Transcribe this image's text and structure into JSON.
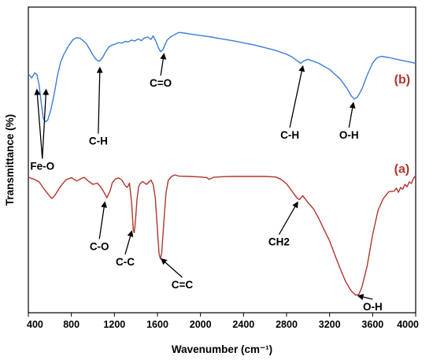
{
  "chart_data": {
    "type": "line",
    "title": "",
    "xlabel": "Wavenumber (cm⁻¹)",
    "ylabel": "Transmittance (%)",
    "xlim": [
      400,
      4000
    ],
    "x_ticks": [
      "400",
      "800",
      "1200",
      "1600",
      "2000",
      "2400",
      "2800",
      "3200",
      "3600",
      "4000"
    ],
    "y_ticks": [],
    "grid": false,
    "legend": "none",
    "y_note": "Transmittance in arbitrary units (0 = bottom of plot, 100 = top of plot)",
    "series": [
      {
        "name": "(b)",
        "color": "#3b7dd8",
        "points": [
          [
            400,
            78.2
          ],
          [
            430,
            76.8
          ],
          [
            460,
            78.5
          ],
          [
            480,
            78.0
          ],
          [
            500,
            74.5
          ],
          [
            520,
            68.5
          ],
          [
            540,
            63.5
          ],
          [
            560,
            62.5
          ],
          [
            580,
            63.0
          ],
          [
            610,
            66.5
          ],
          [
            640,
            71.5
          ],
          [
            670,
            77.5
          ],
          [
            700,
            82.0
          ],
          [
            730,
            84.5
          ],
          [
            760,
            86.5
          ],
          [
            790,
            88.2
          ],
          [
            820,
            89.5
          ],
          [
            850,
            90.0
          ],
          [
            880,
            89.8
          ],
          [
            910,
            89.0
          ],
          [
            940,
            88.0
          ],
          [
            970,
            86.2
          ],
          [
            1000,
            84.3
          ],
          [
            1030,
            82.8
          ],
          [
            1060,
            82.3
          ],
          [
            1090,
            83.5
          ],
          [
            1120,
            85.5
          ],
          [
            1150,
            87.0
          ],
          [
            1180,
            87.6
          ],
          [
            1210,
            87.9
          ],
          [
            1240,
            88.4
          ],
          [
            1270,
            88.2
          ],
          [
            1300,
            88.8
          ],
          [
            1330,
            88.6
          ],
          [
            1360,
            89.2
          ],
          [
            1390,
            88.9
          ],
          [
            1420,
            89.6
          ],
          [
            1450,
            89.0
          ],
          [
            1480,
            89.9
          ],
          [
            1510,
            90.2
          ],
          [
            1540,
            89.4
          ],
          [
            1560,
            90.6
          ],
          [
            1590,
            88.5
          ],
          [
            1610,
            86.6
          ],
          [
            1630,
            85.4
          ],
          [
            1650,
            86.0
          ],
          [
            1670,
            87.7
          ],
          [
            1690,
            89.2
          ],
          [
            1720,
            90.2
          ],
          [
            1750,
            90.8
          ],
          [
            1780,
            91.4
          ],
          [
            1800,
            91.7
          ],
          [
            1850,
            91.5
          ],
          [
            1900,
            91.2
          ],
          [
            2000,
            90.7
          ],
          [
            2100,
            90.2
          ],
          [
            2200,
            89.6
          ],
          [
            2300,
            89.0
          ],
          [
            2400,
            88.3
          ],
          [
            2500,
            87.6
          ],
          [
            2600,
            86.7
          ],
          [
            2700,
            85.8
          ],
          [
            2800,
            84.6
          ],
          [
            2850,
            83.7
          ],
          [
            2900,
            82.4
          ],
          [
            2930,
            81.6
          ],
          [
            2960,
            82.4
          ],
          [
            3000,
            82.9
          ],
          [
            3100,
            81.6
          ],
          [
            3200,
            79.6
          ],
          [
            3300,
            76.4
          ],
          [
            3360,
            73.5
          ],
          [
            3400,
            71.0
          ],
          [
            3430,
            69.9
          ],
          [
            3460,
            70.6
          ],
          [
            3500,
            73.2
          ],
          [
            3550,
            77.8
          ],
          [
            3600,
            81.7
          ],
          [
            3640,
            83.4
          ],
          [
            3680,
            83.9
          ],
          [
            3750,
            83.5
          ],
          [
            3850,
            82.7
          ],
          [
            3950,
            82.0
          ],
          [
            4000,
            81.6
          ]
        ]
      },
      {
        "name": "(a)",
        "color": "#b1352c",
        "points": [
          [
            400,
            44.3
          ],
          [
            450,
            43.7
          ],
          [
            500,
            42.8
          ],
          [
            550,
            40.3
          ],
          [
            600,
            38.1
          ],
          [
            620,
            37.4
          ],
          [
            650,
            38.6
          ],
          [
            700,
            41.4
          ],
          [
            750,
            43.5
          ],
          [
            800,
            44.2
          ],
          [
            850,
            43.1
          ],
          [
            880,
            43.7
          ],
          [
            920,
            44.3
          ],
          [
            960,
            43.0
          ],
          [
            1000,
            42.0
          ],
          [
            1040,
            42.4
          ],
          [
            1070,
            41.3
          ],
          [
            1100,
            39.6
          ],
          [
            1130,
            37.6
          ],
          [
            1160,
            39.9
          ],
          [
            1180,
            42.5
          ],
          [
            1210,
            43.8
          ],
          [
            1240,
            44.1
          ],
          [
            1270,
            43.4
          ],
          [
            1300,
            41.6
          ],
          [
            1320,
            41.0
          ],
          [
            1340,
            42.4
          ],
          [
            1360,
            36.0
          ],
          [
            1375,
            27.0
          ],
          [
            1385,
            26.2
          ],
          [
            1395,
            30.0
          ],
          [
            1410,
            37.0
          ],
          [
            1425,
            41.2
          ],
          [
            1440,
            42.3
          ],
          [
            1460,
            42.9
          ],
          [
            1480,
            42.5
          ],
          [
            1500,
            42.0
          ],
          [
            1520,
            42.8
          ],
          [
            1540,
            43.4
          ],
          [
            1560,
            42.0
          ],
          [
            1580,
            37.5
          ],
          [
            1600,
            27.0
          ],
          [
            1615,
            19.2
          ],
          [
            1628,
            17.6
          ],
          [
            1640,
            19.8
          ],
          [
            1660,
            30.0
          ],
          [
            1680,
            39.2
          ],
          [
            1700,
            43.3
          ],
          [
            1730,
            44.6
          ],
          [
            1760,
            45.1
          ],
          [
            1800,
            44.7
          ],
          [
            1900,
            44.6
          ],
          [
            2000,
            44.4
          ],
          [
            2060,
            44.2
          ],
          [
            2080,
            43.6
          ],
          [
            2120,
            44.3
          ],
          [
            2200,
            44.5
          ],
          [
            2300,
            44.6
          ],
          [
            2400,
            44.6
          ],
          [
            2500,
            44.6
          ],
          [
            2600,
            44.6
          ],
          [
            2700,
            44.4
          ],
          [
            2750,
            43.6
          ],
          [
            2800,
            42.2
          ],
          [
            2850,
            39.8
          ],
          [
            2900,
            37.4
          ],
          [
            2920,
            37.0
          ],
          [
            2950,
            38.3
          ],
          [
            3000,
            36.0
          ],
          [
            3050,
            34.0
          ],
          [
            3100,
            30.8
          ],
          [
            3150,
            27.1
          ],
          [
            3200,
            23.5
          ],
          [
            3250,
            18.8
          ],
          [
            3300,
            14.3
          ],
          [
            3350,
            10.1
          ],
          [
            3400,
            7.2
          ],
          [
            3440,
            5.8
          ],
          [
            3470,
            5.9
          ],
          [
            3500,
            8.4
          ],
          [
            3550,
            15.5
          ],
          [
            3600,
            25.5
          ],
          [
            3650,
            33.5
          ],
          [
            3700,
            37.4
          ],
          [
            3750,
            39.6
          ],
          [
            3800,
            39.8
          ],
          [
            3820,
            40.8
          ],
          [
            3840,
            39.4
          ],
          [
            3860,
            41.0
          ],
          [
            3880,
            40.4
          ],
          [
            3900,
            42.0
          ],
          [
            3920,
            41.2
          ],
          [
            3940,
            42.8
          ],
          [
            3960,
            42.3
          ],
          [
            3980,
            44.0
          ],
          [
            4000,
            44.8
          ]
        ]
      }
    ],
    "series_tags": [
      {
        "text": "(b)",
        "x": 3800,
        "y": 75.0,
        "color": "#b1352c"
      },
      {
        "text": "(a)",
        "x": 3800,
        "y": 45.8,
        "color": "#b1352c"
      }
    ],
    "annotations": [
      {
        "text": "Fe-O",
        "x": 530,
        "y": 46.8,
        "arrows": [
          [
            480,
            72.8
          ],
          [
            565,
            72.8
          ]
        ]
      },
      {
        "text": "C-H",
        "x": 1050,
        "y": 55.0,
        "arrows": [
          [
            1065,
            80.0
          ]
        ]
      },
      {
        "text": "C=O",
        "x": 1630,
        "y": 74.0,
        "arrows": [
          [
            1660,
            84.5
          ]
        ]
      },
      {
        "text": "C-H",
        "x": 2830,
        "y": 57.0,
        "arrows": [
          [
            2950,
            80.5
          ]
        ]
      },
      {
        "text": "O-H",
        "x": 3380,
        "y": 57.0,
        "arrows": [
          [
            3420,
            68.5
          ]
        ]
      },
      {
        "text": "C-O",
        "x": 1060,
        "y": 20.5,
        "arrows": [
          [
            1110,
            36.0
          ]
        ]
      },
      {
        "text": "C-C",
        "x": 1300,
        "y": 15.5,
        "arrows": [
          [
            1360,
            26.5
          ]
        ]
      },
      {
        "text": "C=C",
        "x": 1830,
        "y": 8.0,
        "arrows": [
          [
            1640,
            17.5
          ]
        ]
      },
      {
        "text": "CH2",
        "x": 2730,
        "y": 22.0,
        "arrows": [
          [
            2900,
            36.0
          ]
        ]
      },
      {
        "text": "O-H",
        "x": 3600,
        "y": 0.8,
        "arrows": [
          [
            3470,
            5.5
          ]
        ]
      }
    ]
  }
}
